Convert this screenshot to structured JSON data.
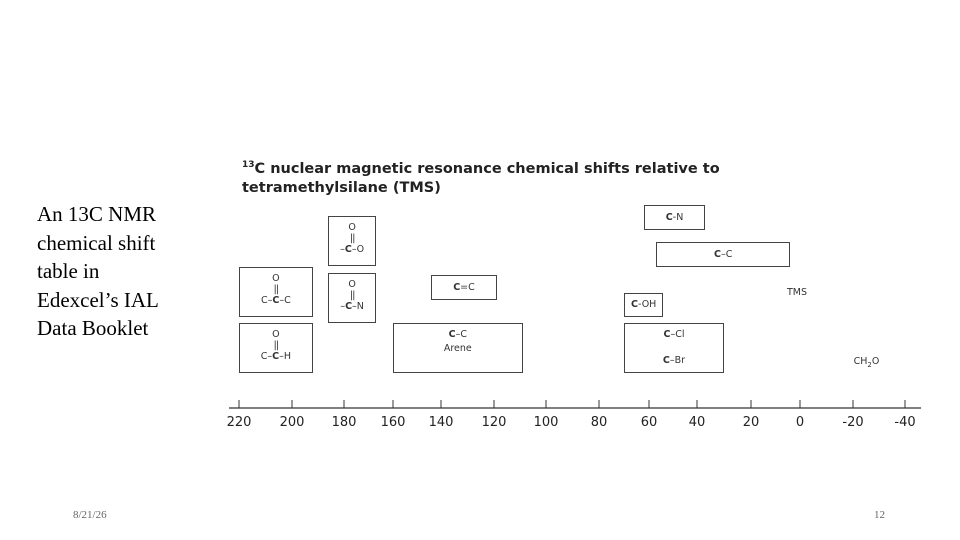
{
  "caption": [
    "An 13C NMR",
    "chemical shift",
    "table in",
    "Edexcel’s IAL",
    "Data Booklet"
  ],
  "footer": {
    "date": "8/21/26",
    "page": "12"
  },
  "chart_data": {
    "type": "table",
    "title_sup": "13",
    "title_lines": [
      "C nuclear magnetic resonance chemical shifts relative to",
      "tetramethylsilane (TMS)"
    ],
    "xaxis": {
      "direction": "reversed",
      "range": [
        220,
        -40
      ]
    },
    "tick_values": [
      220,
      200,
      180,
      160,
      140,
      120,
      100,
      80,
      60,
      40,
      20,
      0,
      -20,
      -40
    ],
    "tick_labels": [
      "220",
      "200",
      "180",
      "160",
      "140",
      "120",
      "100",
      "80",
      "60",
      "40",
      "20",
      "0",
      "-20",
      "-40"
    ],
    "ranges": [
      {
        "id": "ketone",
        "x": [
          220,
          192
        ],
        "structure": {
          "o": "O",
          "bond": "||",
          "chain_pre": "C–",
          "chain_bold": "C",
          "chain_post": "–C"
        }
      },
      {
        "id": "aldehyde",
        "x": [
          220,
          192
        ],
        "structure": {
          "o": "O",
          "bond": "||",
          "chain_pre": "C–",
          "chain_bold": "C",
          "chain_post": "–H"
        }
      },
      {
        "id": "ester-acid",
        "x": [
          186,
          167
        ],
        "structure": {
          "o": "O",
          "bond": "||",
          "chain_pre": "–",
          "chain_bold": "C",
          "chain_post": "–O"
        }
      },
      {
        "id": "amide",
        "x": [
          186,
          167
        ],
        "structure": {
          "o": "O",
          "bond": "||",
          "chain_pre": "–",
          "chain_bold": "C",
          "chain_post": "–N"
        }
      },
      {
        "id": "alkene",
        "x": [
          144,
          119
        ],
        "label_bold": "C",
        "label_rest": "=C"
      },
      {
        "id": "arene",
        "x": [
          160,
          109
        ],
        "label_bold": "C",
        "label_rest": "–C",
        "sublabel": "Arene"
      },
      {
        "id": "amine",
        "x": [
          62,
          37
        ],
        "label_bold": "C",
        "label_rest": "-N"
      },
      {
        "id": "alkane",
        "x": [
          57,
          4
        ],
        "label_bold": "C",
        "label_rest": "–C"
      },
      {
        "id": "alcohol",
        "x": [
          70,
          54
        ],
        "label_bold": "C",
        "label_rest": "-OH"
      },
      {
        "id": "halide",
        "x": [
          70,
          30
        ],
        "labels": [
          {
            "bold": "C",
            "rest": "–Cl"
          },
          {
            "bold": "C",
            "rest": "–Br"
          }
        ]
      }
    ],
    "annotations": [
      {
        "id": "tms",
        "text": "TMS",
        "x": 0
      },
      {
        "id": "ch2o",
        "text_main": "CH",
        "text_sub": "2",
        "text_tail": "O",
        "x": -26
      }
    ]
  }
}
